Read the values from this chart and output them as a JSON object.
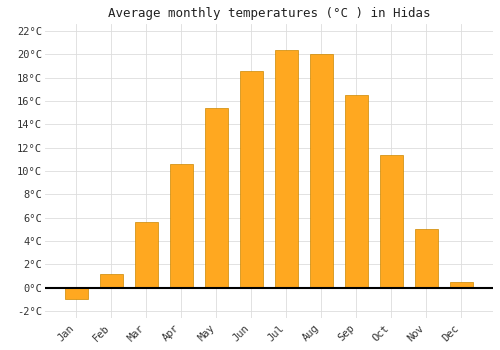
{
  "title": "Average monthly temperatures (°C ) in Hidas",
  "months": [
    "Jan",
    "Feb",
    "Mar",
    "Apr",
    "May",
    "Jun",
    "Jul",
    "Aug",
    "Sep",
    "Oct",
    "Nov",
    "Dec"
  ],
  "values": [
    -1.0,
    1.2,
    5.6,
    10.6,
    15.4,
    18.6,
    20.4,
    20.0,
    16.5,
    11.4,
    5.0,
    0.5
  ],
  "bar_color_positive": "#FFA820",
  "bar_color_negative": "#FFA820",
  "bar_edge_color": "#CC8800",
  "background_color": "#FFFFFF",
  "plot_bg_color": "#FFFFFF",
  "grid_color": "#DDDDDD",
  "title_fontsize": 9,
  "tick_fontsize": 7.5,
  "ylim": [
    -2.6,
    22.6
  ],
  "yticks": [
    -2,
    0,
    2,
    4,
    6,
    8,
    10,
    12,
    14,
    16,
    18,
    20,
    22
  ]
}
